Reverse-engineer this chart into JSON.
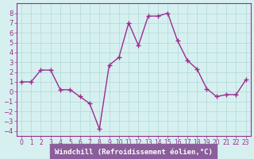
{
  "x": [
    0,
    1,
    2,
    3,
    4,
    5,
    6,
    7,
    8,
    9,
    10,
    11,
    12,
    13,
    14,
    15,
    16,
    17,
    18,
    19,
    20,
    21,
    22,
    23
  ],
  "y": [
    1.0,
    1.0,
    2.2,
    2.2,
    0.2,
    0.2,
    -0.5,
    -1.2,
    -3.8,
    2.7,
    3.5,
    7.0,
    4.7,
    7.7,
    7.7,
    8.0,
    5.2,
    3.2,
    2.3,
    0.3,
    -0.5,
    -0.3,
    -0.3,
    1.2
  ],
  "line_color": "#9b2d8e",
  "marker": "+",
  "bg_color": "#d6f0f0",
  "grid_color": "#b0d8d8",
  "xlabel": "Windchill (Refroidissement éolien,°C)",
  "xlabel_color": "#9b2d8e",
  "xlabel_bg": "#8b5e9b",
  "ylim": [
    -4.5,
    9
  ],
  "xlim": [
    -0.5,
    23.5
  ],
  "yticks": [
    -4,
    -3,
    -2,
    -1,
    0,
    1,
    2,
    3,
    4,
    5,
    6,
    7,
    8
  ],
  "xticks": [
    0,
    1,
    2,
    3,
    4,
    5,
    6,
    7,
    8,
    9,
    10,
    11,
    12,
    13,
    14,
    15,
    16,
    17,
    18,
    19,
    20,
    21,
    22,
    23
  ],
  "tick_color": "#9b2d8e",
  "spine_color": "#9b2d8e"
}
